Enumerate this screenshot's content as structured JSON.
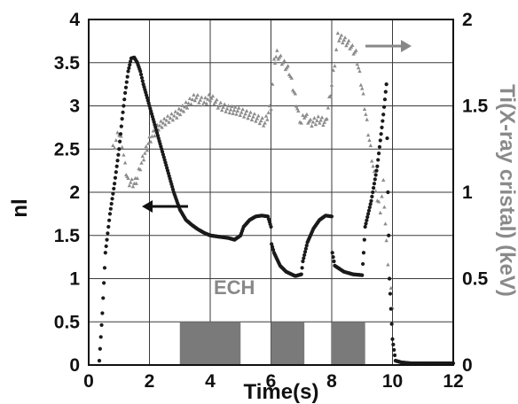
{
  "chart_data": {
    "type": "scatter",
    "title": "",
    "xlabel": "Time(s)",
    "ylabel": "nl",
    "ylabel_right": "Ti(X-ray cristal) (keV)",
    "xlim": [
      0,
      12
    ],
    "ylim": [
      0,
      4
    ],
    "ylim_right": [
      0,
      2
    ],
    "grid": true,
    "x_ticks": [
      "0",
      "2",
      "4",
      "6",
      "8",
      "10",
      "12"
    ],
    "y_ticks": [
      "0",
      "0.5",
      "1",
      "1.5",
      "2",
      "2.5",
      "3",
      "3.5",
      "4"
    ],
    "y_right_ticks": [
      "0",
      "0.5",
      "1",
      "1.5",
      "2"
    ],
    "colors": {
      "nl": "#1a1a1a",
      "ti": "#8c8c8c",
      "ech": "#7a7a7a",
      "grid": "#3a3a3a"
    },
    "annotation": "ECH",
    "ech_pulses": [
      [
        3,
        5
      ],
      [
        6,
        7.1
      ],
      [
        8,
        9.1
      ]
    ],
    "ech_height": 0.5,
    "series": [
      {
        "axis": "left",
        "marker": "dot",
        "x": [
          0.35,
          0.45,
          0.55,
          0.7,
          0.85,
          1.0,
          1.1,
          1.2,
          1.3,
          1.4,
          1.5,
          1.6,
          1.7,
          1.8,
          2.0,
          2.2,
          2.4,
          2.6,
          2.8,
          3.0,
          3.2,
          3.4,
          3.6,
          3.8,
          4.0,
          4.2,
          4.4,
          4.6,
          4.8,
          5.0,
          5.1,
          5.3,
          5.5,
          5.7,
          5.9,
          6.0,
          6.02,
          6.1,
          6.3,
          6.5,
          6.8,
          7.0,
          7.05,
          7.2,
          7.4,
          7.6,
          7.8,
          8.0,
          8.02,
          8.1,
          8.4,
          8.7,
          9.0,
          9.05,
          9.1,
          9.3,
          9.5,
          9.7,
          9.8,
          9.85,
          9.9,
          10.0,
          10.1,
          10.3,
          10.6,
          11.0,
          11.5,
          12.0
        ],
        "y": [
          0.05,
          0.6,
          1.3,
          1.75,
          2.1,
          2.5,
          2.85,
          3.15,
          3.4,
          3.55,
          3.56,
          3.5,
          3.4,
          3.25,
          3.0,
          2.75,
          2.5,
          2.25,
          2.0,
          1.8,
          1.68,
          1.62,
          1.57,
          1.53,
          1.5,
          1.49,
          1.48,
          1.47,
          1.45,
          1.5,
          1.6,
          1.68,
          1.72,
          1.73,
          1.72,
          1.6,
          1.4,
          1.3,
          1.15,
          1.08,
          1.03,
          1.05,
          1.2,
          1.42,
          1.58,
          1.68,
          1.73,
          1.72,
          1.3,
          1.15,
          1.08,
          1.05,
          1.04,
          1.3,
          1.6,
          1.9,
          2.3,
          2.9,
          3.25,
          2.0,
          1.0,
          0.3,
          0.05,
          0.03,
          0.02,
          0.02,
          0.02,
          0.02
        ]
      },
      {
        "axis": "right",
        "marker": "triangle",
        "x": [
          0.8,
          0.9,
          1.0,
          1.1,
          1.2,
          1.3,
          1.5,
          1.6,
          1.7,
          2.0,
          2.3,
          2.6,
          2.9,
          3.2,
          3.5,
          3.8,
          4.0,
          4.3,
          4.6,
          4.9,
          5.2,
          5.5,
          5.8,
          6.0,
          6.1,
          6.2,
          6.4,
          6.6,
          6.8,
          6.9,
          7.0,
          7.1,
          7.3,
          7.6,
          7.8,
          8.0,
          8.1,
          8.2,
          8.4,
          8.6,
          8.8,
          9.0,
          9.2,
          9.4,
          9.5,
          9.6,
          9.7,
          9.8,
          9.9,
          10.0
        ],
        "y": [
          1.25,
          1.3,
          1.35,
          1.28,
          1.15,
          1.06,
          1.05,
          1.08,
          1.15,
          1.3,
          1.38,
          1.42,
          1.45,
          1.5,
          1.55,
          1.52,
          1.55,
          1.5,
          1.48,
          1.47,
          1.45,
          1.43,
          1.4,
          1.5,
          1.75,
          1.8,
          1.75,
          1.7,
          1.55,
          1.45,
          1.4,
          1.45,
          1.4,
          1.42,
          1.4,
          1.62,
          1.75,
          1.9,
          1.88,
          1.85,
          1.8,
          1.6,
          1.35,
          1.1,
          0.95,
          0.9,
          1.05,
          0.7,
          0.5,
          0.35
        ]
      }
    ]
  }
}
